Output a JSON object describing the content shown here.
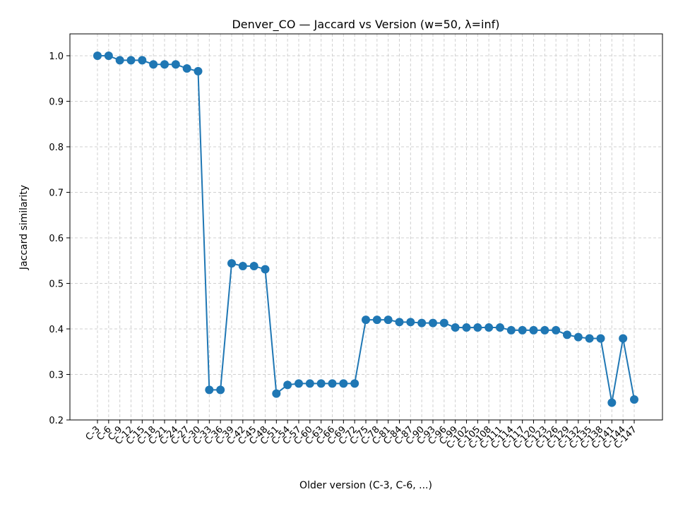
{
  "chart_data": {
    "type": "line",
    "title": "Denver_CO — Jaccard vs Version (w=50, λ=inf)",
    "x_label": "Older version (C-3, C-6, ...)",
    "y_label": "Jaccard similarity",
    "categories": [
      "C-3",
      "C-6",
      "C-9",
      "C-12",
      "C-15",
      "C-18",
      "C-21",
      "C-24",
      "C-27",
      "C-30",
      "C-33",
      "C-36",
      "C-39",
      "C-42",
      "C-45",
      "C-48",
      "C-51",
      "C-54",
      "C-57",
      "C-60",
      "C-63",
      "C-66",
      "C-69",
      "C-72",
      "C-75",
      "C-78",
      "C-81",
      "C-84",
      "C-87",
      "C-90",
      "C-93",
      "C-96",
      "C-99",
      "C-102",
      "C-105",
      "C-108",
      "C-111",
      "C-114",
      "C-117",
      "C-120",
      "C-123",
      "C-126",
      "C-129",
      "C-132",
      "C-135",
      "C-138",
      "C-141",
      "C-144",
      "C-147"
    ],
    "series": [
      {
        "name": "Jaccard",
        "color": "#1f77b4",
        "values": [
          1.0,
          1.0,
          0.99,
          0.99,
          0.99,
          0.981,
          0.981,
          0.981,
          0.972,
          0.966,
          0.266,
          0.266,
          0.544,
          0.538,
          0.538,
          0.531,
          0.258,
          0.277,
          0.28,
          0.28,
          0.28,
          0.28,
          0.28,
          0.28,
          0.42,
          0.42,
          0.42,
          0.415,
          0.415,
          0.413,
          0.413,
          0.413,
          0.403,
          0.403,
          0.403,
          0.403,
          0.403,
          0.397,
          0.397,
          0.397,
          0.397,
          0.397,
          0.387,
          0.382,
          0.379,
          0.379,
          0.238,
          0.379,
          0.245
        ]
      }
    ],
    "ylim": [
      0.2,
      1.048
    ],
    "yticks": [
      0.2,
      0.3,
      0.4,
      0.5,
      0.6,
      0.7,
      0.8,
      0.9,
      {
        "value": 1,
        "label": "1.0"
      }
    ],
    "grid": true
  }
}
